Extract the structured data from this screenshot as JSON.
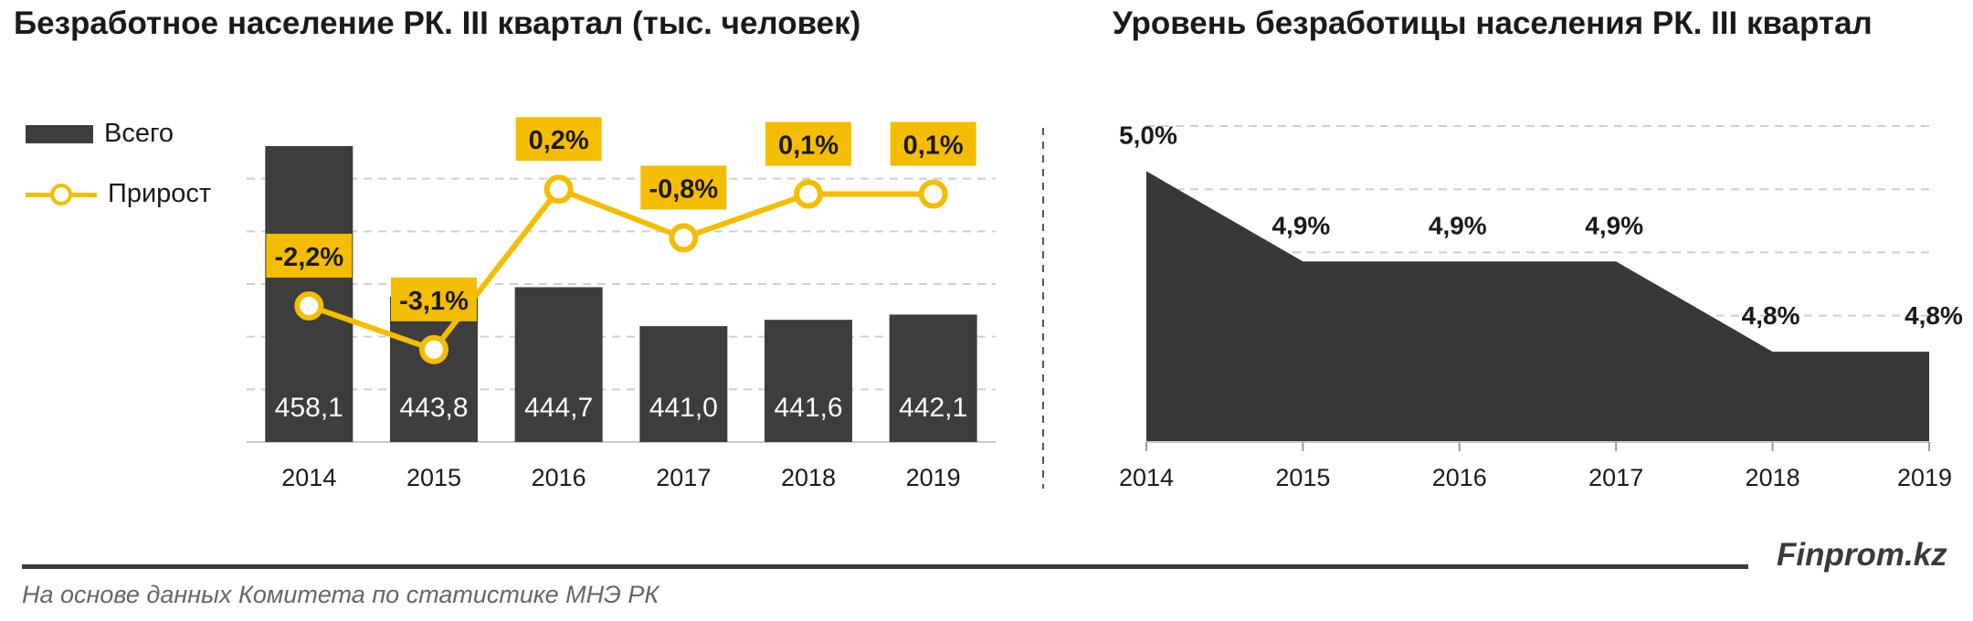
{
  "chart_data": [
    {
      "type": "bar",
      "title": "Безработное население РК. III квартал (тыс. человек)",
      "categories": [
        "2014",
        "2015",
        "2016",
        "2017",
        "2018",
        "2019"
      ],
      "series": [
        {
          "name": "Всего",
          "type": "bar",
          "values": [
            458.1,
            443.8,
            444.7,
            441.0,
            441.6,
            442.1
          ],
          "labels": [
            "458,1",
            "443,8",
            "444,7",
            "441,0",
            "441,6",
            "442,1"
          ]
        },
        {
          "name": "Прирост",
          "type": "line",
          "values": [
            -2.2,
            -3.1,
            0.2,
            -0.8,
            0.1,
            0.1
          ],
          "labels": [
            "-2,2%",
            "-3,1%",
            "0,2%",
            "-0,8%",
            "0,1%",
            "0,1%"
          ]
        }
      ],
      "ylim_bars": [
        430,
        460
      ],
      "ylim_line": [
        -5,
        1.5
      ],
      "grid": true,
      "legend": "left"
    },
    {
      "type": "area",
      "title": "Уровень безработицы населения РК. III квартал",
      "categories": [
        "2014",
        "2015",
        "2016",
        "2017",
        "2018",
        "2019"
      ],
      "series": [
        {
          "values": [
            5.0,
            4.9,
            4.9,
            4.9,
            4.8,
            4.8
          ],
          "labels": [
            "5,0%",
            "4,9%",
            "4,9%",
            "4,9%",
            "4,8%",
            "4,8%"
          ]
        }
      ],
      "ylim": [
        4.7,
        5.05
      ],
      "grid": true
    }
  ],
  "colors": {
    "bar": "#3d3d3d",
    "line": "#f5bd00",
    "grid": "#cfcfcf",
    "area": "#383838"
  },
  "footer": {
    "brand": "Finprom.kz",
    "source": "На основе данных  Комитета по статистике МНЭ РК"
  }
}
